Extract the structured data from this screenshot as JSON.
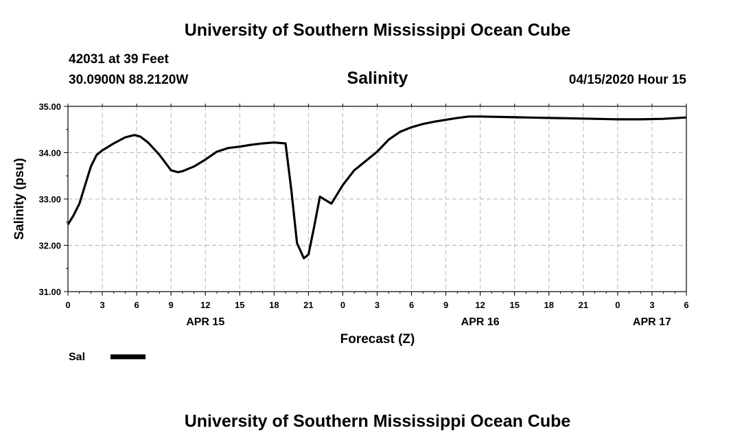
{
  "header": {
    "title": "University of Southern Mississippi Ocean Cube",
    "station": "42031 at 39 Feet",
    "location": "30.0900N 88.2120W",
    "chart_title": "Salinity",
    "timestamp": "04/15/2020 Hour 15"
  },
  "footer": {
    "title": "University of Southern Mississippi Ocean Cube"
  },
  "legend": {
    "label": "Sal"
  },
  "chart_data": {
    "type": "line",
    "title": "Salinity",
    "xlabel": "Forecast (Z)",
    "ylabel": "Salinity (psu)",
    "ylim": [
      31.0,
      35.0
    ],
    "xlim": [
      0,
      54
    ],
    "grid": true,
    "legend_position": "bottom-left",
    "y_ticks": [
      "31.00",
      "32.00",
      "33.00",
      "34.00",
      "35.00"
    ],
    "x_tick_labels": [
      "0",
      "3",
      "6",
      "9",
      "12",
      "15",
      "18",
      "21",
      "0",
      "3",
      "6",
      "9",
      "12",
      "15",
      "18",
      "21",
      "0",
      "3",
      "6"
    ],
    "date_labels": [
      {
        "label": "APR 15",
        "at_hour": 12
      },
      {
        "label": "APR 16",
        "at_hour": 36
      },
      {
        "label": "APR 17",
        "at_hour": 51
      }
    ],
    "series": [
      {
        "name": "Sal",
        "color": "#000000",
        "x": [
          0,
          0.5,
          1,
          1.5,
          2,
          2.5,
          3,
          4,
          5,
          5.8,
          6.3,
          7,
          8,
          9,
          9.6,
          10,
          11,
          12,
          13,
          14,
          15,
          16,
          17,
          18,
          19,
          19.5,
          20,
          20.6,
          21,
          21.5,
          22,
          23,
          24,
          25,
          26,
          27,
          28,
          29,
          30,
          31,
          32,
          33,
          34,
          35,
          36,
          38,
          40,
          42,
          44,
          46,
          48,
          50,
          52,
          54
        ],
        "y": [
          32.45,
          32.65,
          32.9,
          33.3,
          33.7,
          33.95,
          34.05,
          34.2,
          34.33,
          34.38,
          34.35,
          34.22,
          33.95,
          33.62,
          33.58,
          33.6,
          33.7,
          33.85,
          34.02,
          34.1,
          34.13,
          34.17,
          34.2,
          34.22,
          34.2,
          33.2,
          32.05,
          31.72,
          31.8,
          32.4,
          33.05,
          32.9,
          33.3,
          33.62,
          33.82,
          34.02,
          34.28,
          34.45,
          34.55,
          34.62,
          34.67,
          34.71,
          34.75,
          34.78,
          34.78,
          34.77,
          34.76,
          34.75,
          34.74,
          34.73,
          34.72,
          34.72,
          34.73,
          34.76
        ]
      }
    ]
  }
}
